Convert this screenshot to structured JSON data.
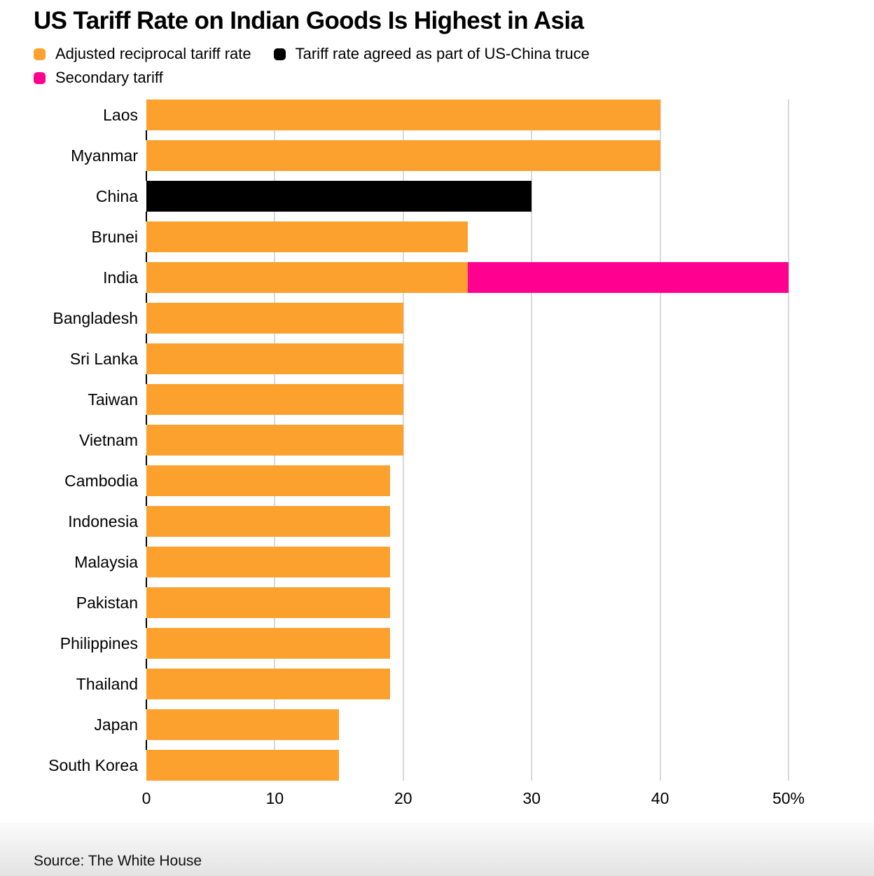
{
  "title": "US Tariff Rate on Indian Goods Is Highest in Asia",
  "legend": {
    "items": [
      {
        "label": "Adjusted reciprocal tariff rate",
        "color": "#FCA12E"
      },
      {
        "label": "Tariff rate agreed as part of US-China truce",
        "color": "#000000"
      },
      {
        "label": "Secondary tariff",
        "color": "#FF0090"
      }
    ]
  },
  "source": "Source: The White House",
  "chart_data": {
    "type": "bar",
    "orientation": "horizontal",
    "stacked": true,
    "title": "US Tariff Rate on Indian Goods Is Highest in Asia",
    "xlabel": "",
    "ylabel": "",
    "unit": "%",
    "categories": [
      "Laos",
      "Myanmar",
      "China",
      "Brunei",
      "India",
      "Bangladesh",
      "Sri Lanka",
      "Taiwan",
      "Vietnam",
      "Cambodia",
      "Indonesia",
      "Malaysia",
      "Pakistan",
      "Philippines",
      "Thailand",
      "Japan",
      "South Korea"
    ],
    "series": [
      {
        "name": "Adjusted reciprocal tariff rate",
        "key": "reciprocal",
        "color": "#FCA12E",
        "values": [
          40,
          40,
          0,
          25,
          25,
          20,
          20,
          20,
          20,
          19,
          19,
          19,
          19,
          19,
          19,
          15,
          15
        ]
      },
      {
        "name": "Tariff rate agreed as part of US-China truce",
        "key": "truce",
        "color": "#000000",
        "values": [
          0,
          0,
          30,
          0,
          0,
          0,
          0,
          0,
          0,
          0,
          0,
          0,
          0,
          0,
          0,
          0,
          0
        ]
      },
      {
        "name": "Secondary tariff",
        "key": "secondary",
        "color": "#FF0090",
        "values": [
          0,
          0,
          0,
          0,
          25,
          0,
          0,
          0,
          0,
          0,
          0,
          0,
          0,
          0,
          0,
          0,
          0
        ]
      }
    ],
    "totals": [
      40,
      40,
      30,
      25,
      50,
      20,
      20,
      20,
      20,
      19,
      19,
      19,
      19,
      19,
      19,
      15,
      15
    ],
    "xlim": [
      0,
      50
    ],
    "xticks": [
      0,
      10,
      20,
      30,
      40,
      50
    ],
    "xtick_labels": [
      "0",
      "10",
      "20",
      "30",
      "40",
      "50%"
    ],
    "grid": "vertical-gridlines-behind-bars",
    "legend_position": "top-left"
  }
}
